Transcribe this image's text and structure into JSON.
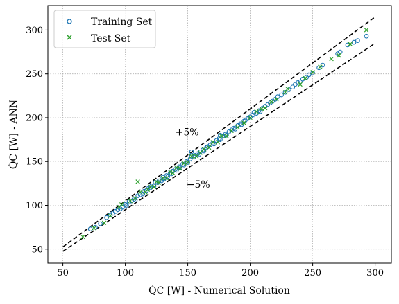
{
  "chart_data": {
    "type": "scatter",
    "xlabel": "Q̇C [W] - Numerical Solution",
    "ylabel": "Q̇C [W] - ANN",
    "xlim": [
      38,
      313
    ],
    "ylim": [
      34,
      328
    ],
    "xticks": [
      50,
      100,
      150,
      200,
      250,
      300
    ],
    "yticks": [
      50,
      100,
      150,
      200,
      250,
      300
    ],
    "grid": true,
    "legend_position": "top-left",
    "legend": [
      {
        "label": "Training Set",
        "marker": "circle",
        "color": "#1f77b4"
      },
      {
        "label": "Test  Set",
        "marker": "x",
        "color": "#2ca02c"
      }
    ],
    "reference_lines": [
      {
        "label": "+5%",
        "factor": 1.05,
        "x_range": [
          50,
          300
        ],
        "style": "dashed"
      },
      {
        "label": "−5%",
        "factor": 0.95,
        "x_range": [
          50,
          300
        ],
        "style": "dashed"
      }
    ],
    "annotations": [
      {
        "text": "+5%",
        "x": 140,
        "y": 180
      },
      {
        "text": "−5%",
        "x": 149,
        "y": 120
      }
    ],
    "series": [
      {
        "name": "Training Set",
        "points": [
          [
            72,
            73
          ],
          [
            76,
            75
          ],
          [
            80,
            79
          ],
          [
            85,
            86
          ],
          [
            88,
            89
          ],
          [
            90,
            91
          ],
          [
            92,
            93
          ],
          [
            94,
            95
          ],
          [
            96,
            96
          ],
          [
            98,
            98
          ],
          [
            100,
            101
          ],
          [
            101,
            100
          ],
          [
            103,
            104
          ],
          [
            105,
            105
          ],
          [
            107,
            107
          ],
          [
            108,
            106
          ],
          [
            110,
            111
          ],
          [
            112,
            112
          ],
          [
            114,
            113
          ],
          [
            115,
            116
          ],
          [
            117,
            117
          ],
          [
            118,
            119
          ],
          [
            120,
            120
          ],
          [
            121,
            122
          ],
          [
            123,
            122
          ],
          [
            124,
            126
          ],
          [
            126,
            126
          ],
          [
            127,
            128
          ],
          [
            129,
            128
          ],
          [
            130,
            132
          ],
          [
            131,
            130
          ],
          [
            133,
            134
          ],
          [
            134,
            133
          ],
          [
            136,
            137
          ],
          [
            137,
            136
          ],
          [
            138,
            139
          ],
          [
            140,
            141
          ],
          [
            141,
            140
          ],
          [
            143,
            144
          ],
          [
            144,
            143
          ],
          [
            146,
            147
          ],
          [
            147,
            146
          ],
          [
            149,
            150
          ],
          [
            150,
            149
          ],
          [
            152,
            153
          ],
          [
            153,
            156
          ],
          [
            155,
            155
          ],
          [
            156,
            157
          ],
          [
            158,
            159
          ],
          [
            159,
            158
          ],
          [
            160,
            161
          ],
          [
            162,
            163
          ],
          [
            163,
            162
          ],
          [
            165,
            166
          ],
          [
            166,
            167
          ],
          [
            168,
            169
          ],
          [
            170,
            171
          ],
          [
            171,
            170
          ],
          [
            173,
            174
          ],
          [
            175,
            176
          ],
          [
            176,
            175
          ],
          [
            178,
            179
          ],
          [
            180,
            181
          ],
          [
            181,
            180
          ],
          [
            183,
            184
          ],
          [
            185,
            186
          ],
          [
            187,
            188
          ],
          [
            188,
            187
          ],
          [
            190,
            191
          ],
          [
            192,
            193
          ],
          [
            193,
            192
          ],
          [
            195,
            196
          ],
          [
            196,
            197
          ],
          [
            198,
            199
          ],
          [
            200,
            201
          ],
          [
            202,
            203
          ],
          [
            203,
            206
          ],
          [
            205,
            205
          ],
          [
            207,
            208
          ],
          [
            208,
            207
          ],
          [
            210,
            211
          ],
          [
            212,
            213
          ],
          [
            214,
            215
          ],
          [
            216,
            217
          ],
          [
            218,
            219
          ],
          [
            220,
            221
          ],
          [
            222,
            224
          ],
          [
            225,
            226
          ],
          [
            228,
            229
          ],
          [
            231,
            232
          ],
          [
            234,
            235
          ],
          [
            236,
            238
          ],
          [
            238,
            240
          ],
          [
            240,
            241
          ],
          [
            242,
            244
          ],
          [
            245,
            246
          ],
          [
            247,
            249
          ],
          [
            250,
            251
          ],
          [
            255,
            257
          ],
          [
            258,
            260
          ],
          [
            270,
            273
          ],
          [
            272,
            275
          ],
          [
            278,
            283
          ],
          [
            283,
            286
          ],
          [
            286,
            288
          ],
          [
            293,
            293
          ],
          [
            153,
            161
          ],
          [
            176,
            180
          ]
        ]
      },
      {
        "name": "Test  Set",
        "points": [
          [
            66,
            64
          ],
          [
            75,
            74
          ],
          [
            83,
            80
          ],
          [
            88,
            88
          ],
          [
            95,
            98
          ],
          [
            97,
            101
          ],
          [
            104,
            105
          ],
          [
            108,
            108
          ],
          [
            110,
            127
          ],
          [
            112,
            115
          ],
          [
            116,
            115
          ],
          [
            118,
            118
          ],
          [
            120,
            121
          ],
          [
            123,
            121
          ],
          [
            125,
            127
          ],
          [
            127,
            126
          ],
          [
            130,
            131
          ],
          [
            133,
            131
          ],
          [
            136,
            138
          ],
          [
            138,
            137
          ],
          [
            141,
            143
          ],
          [
            144,
            142
          ],
          [
            147,
            148
          ],
          [
            150,
            149
          ],
          [
            153,
            156
          ],
          [
            157,
            156
          ],
          [
            160,
            160
          ],
          [
            163,
            164
          ],
          [
            167,
            166
          ],
          [
            170,
            172
          ],
          [
            174,
            172
          ],
          [
            177,
            179
          ],
          [
            181,
            179
          ],
          [
            185,
            185
          ],
          [
            190,
            189
          ],
          [
            195,
            194
          ],
          [
            200,
            200
          ],
          [
            205,
            207
          ],
          [
            209,
            210
          ],
          [
            212,
            211
          ],
          [
            217,
            218
          ],
          [
            221,
            221
          ],
          [
            228,
            229
          ],
          [
            230,
            233
          ],
          [
            240,
            238
          ],
          [
            244,
            245
          ],
          [
            250,
            252
          ],
          [
            256,
            258
          ],
          [
            265,
            267
          ],
          [
            271,
            271
          ],
          [
            280,
            284
          ],
          [
            293,
            300
          ]
        ]
      }
    ]
  }
}
